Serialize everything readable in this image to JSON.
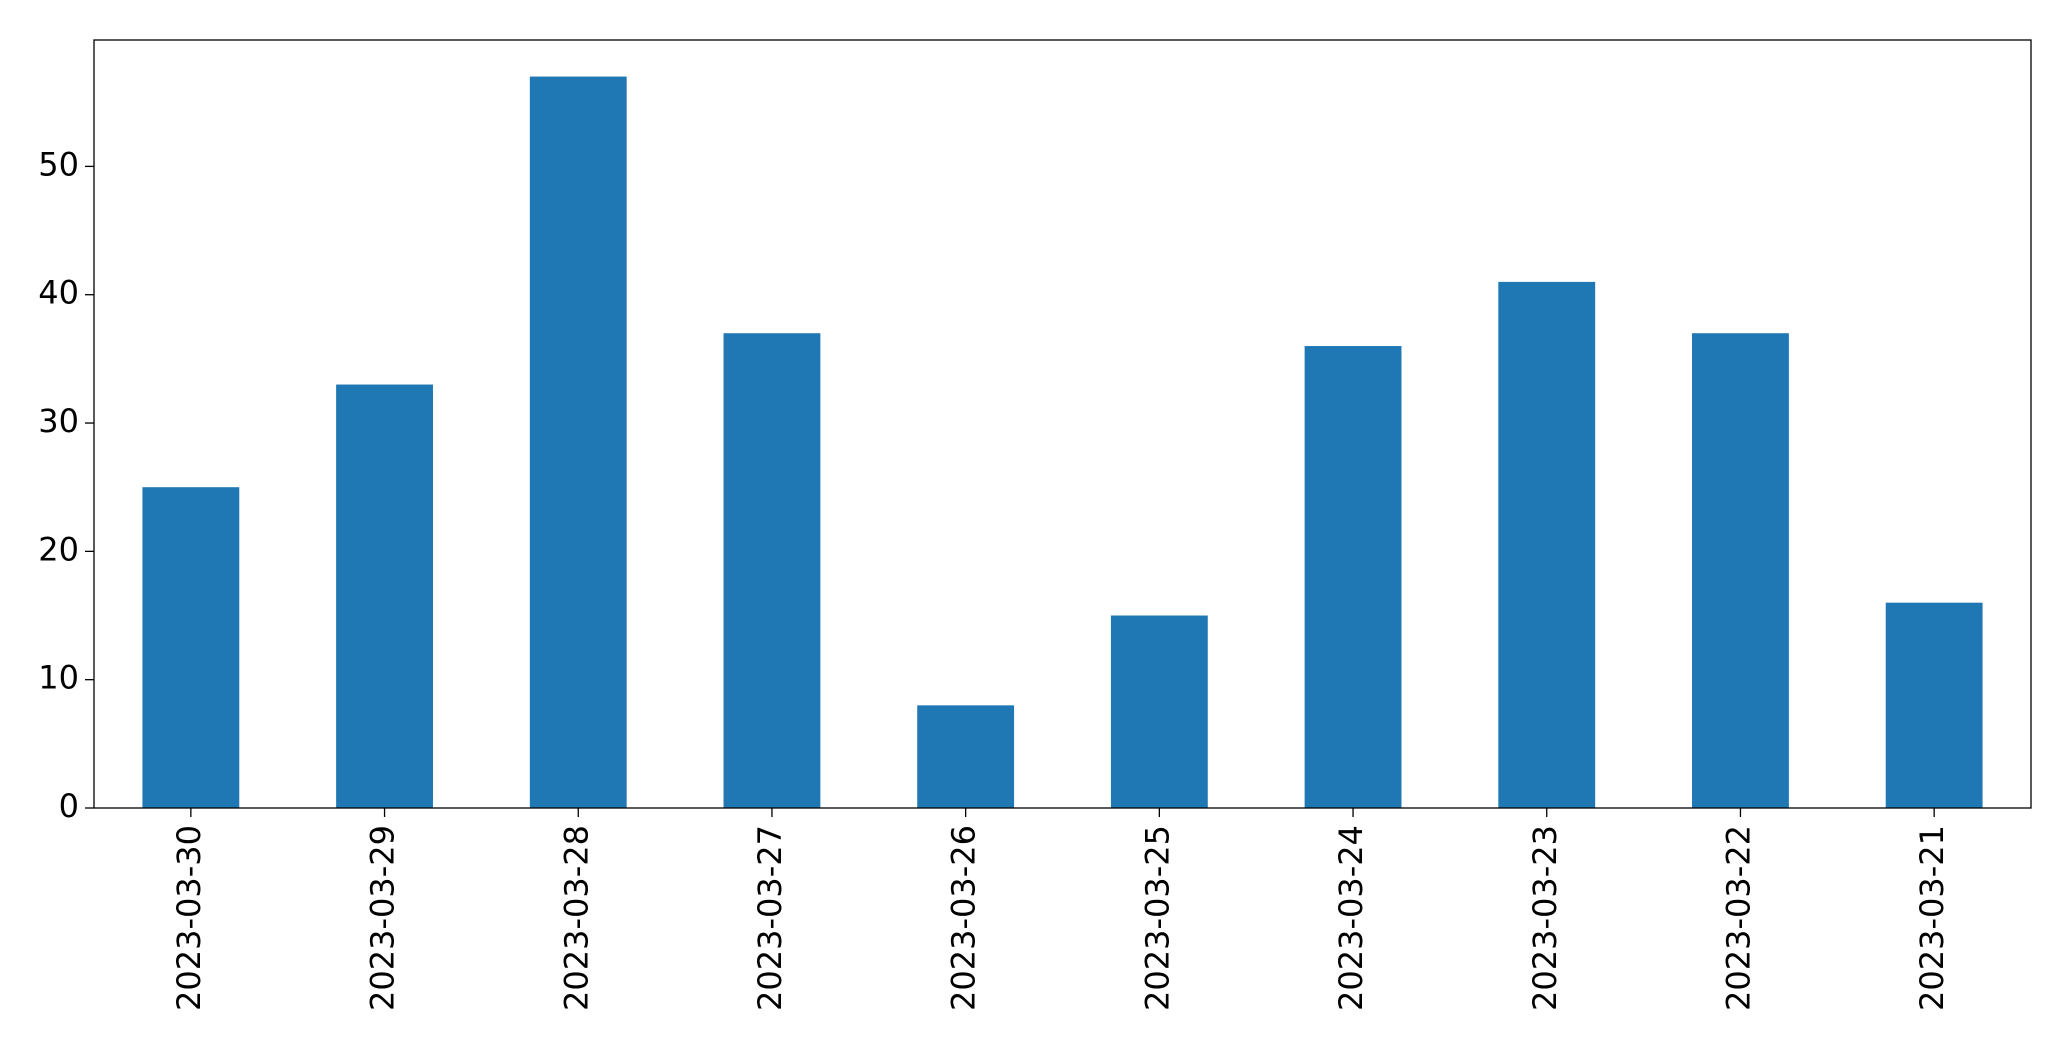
{
  "chart_data": {
    "type": "bar",
    "categories": [
      "2023-03-30",
      "2023-03-29",
      "2023-03-28",
      "2023-03-27",
      "2023-03-26",
      "2023-03-25",
      "2023-03-24",
      "2023-03-23",
      "2023-03-22",
      "2023-03-21"
    ],
    "values": [
      25,
      33,
      57,
      37,
      8,
      15,
      36,
      41,
      37,
      16
    ],
    "color": "#1f77b4",
    "ylim": [
      0,
      59.85
    ],
    "yticks": [
      0,
      10,
      20,
      30,
      40,
      50
    ],
    "grid": false
  }
}
